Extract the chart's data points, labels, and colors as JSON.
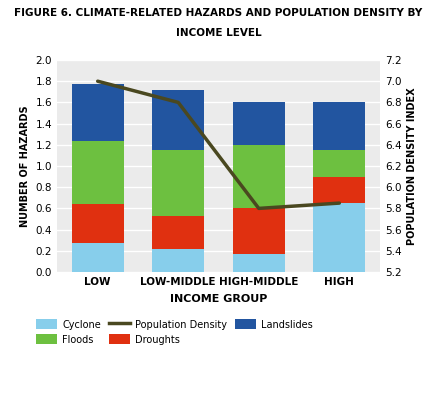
{
  "title_line1": "FIGURE 6. CLIMATE-RELATED HAZARDS AND POPULATION DENSITY BY",
  "title_line2": "INCOME LEVEL",
  "categories": [
    "LOW",
    "LOW-MIDDLE",
    "HIGH-MIDDLE",
    "HIGH"
  ],
  "cyclone": [
    0.27,
    0.22,
    0.17,
    0.65
  ],
  "droughts": [
    0.37,
    0.31,
    0.43,
    0.25
  ],
  "floods": [
    0.6,
    0.62,
    0.6,
    0.25
  ],
  "landslides": [
    0.53,
    0.57,
    0.4,
    0.45
  ],
  "pop_density": [
    7.0,
    6.8,
    5.8,
    5.85
  ],
  "cyclone_color": "#87CEEB",
  "droughts_color": "#E03010",
  "floods_color": "#6DC040",
  "landslides_color": "#2255A0",
  "pop_density_color": "#4A4820",
  "xlabel": "INCOME GROUP",
  "ylabel_left": "NUMBER OF HAZARDS",
  "ylabel_right": "POPULATION DENSITY INDEX",
  "ylim_left": [
    0.0,
    2.0
  ],
  "ylim_right": [
    5.2,
    7.2
  ],
  "yticks_left": [
    0.0,
    0.2,
    0.4,
    0.6,
    0.8,
    1.0,
    1.2,
    1.4,
    1.6,
    1.8,
    2.0
  ],
  "yticks_right": [
    5.2,
    5.4,
    5.6,
    5.8,
    6.0,
    6.2,
    6.4,
    6.6,
    6.8,
    7.0,
    7.2
  ],
  "bg_color": "#EBEBEB",
  "bar_width": 0.65
}
